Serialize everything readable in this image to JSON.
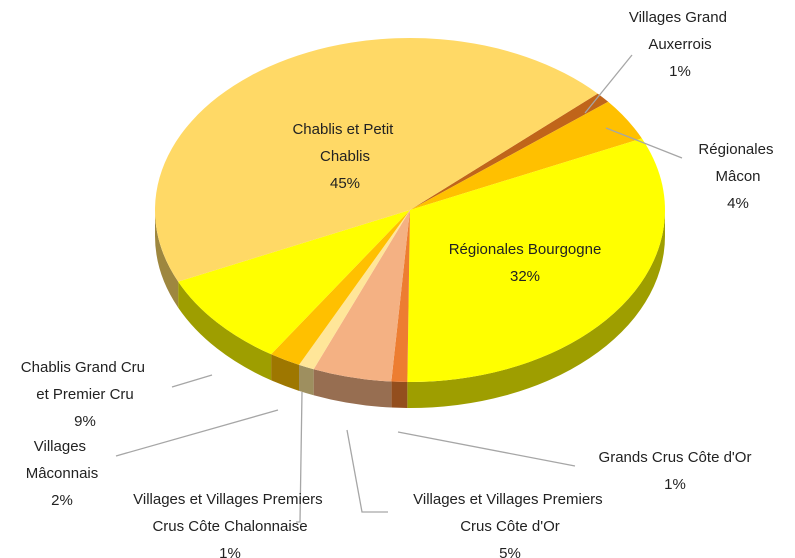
{
  "chart_data": {
    "type": "pie3d",
    "categories": [
      "Villages Grand Auxerrois",
      "Régionales Mâcon",
      "Régionales Bourgogne",
      "Grands Crus Côte d'Or",
      "Villages et Villages Premiers Crus Côte d'Or",
      "Villages et Villages Premiers Crus Côte Chalonnaise",
      "Villages Mâconnais",
      "Chablis Grand Cru et Premier Cru",
      "Chablis et Petit Chablis"
    ],
    "values": [
      1,
      4,
      32,
      1,
      5,
      1,
      2,
      9,
      45
    ],
    "value_labels": [
      "1%",
      "4%",
      "32%",
      "1%",
      "5%",
      "1%",
      "2%",
      "9%",
      "45%"
    ],
    "colors": [
      "#c0651a",
      "#ffc000",
      "#ffff00",
      "#ed7d31",
      "#f4b183",
      "#ffe699",
      "#ffc000",
      "#ffff00",
      "#ffd966"
    ]
  }
}
